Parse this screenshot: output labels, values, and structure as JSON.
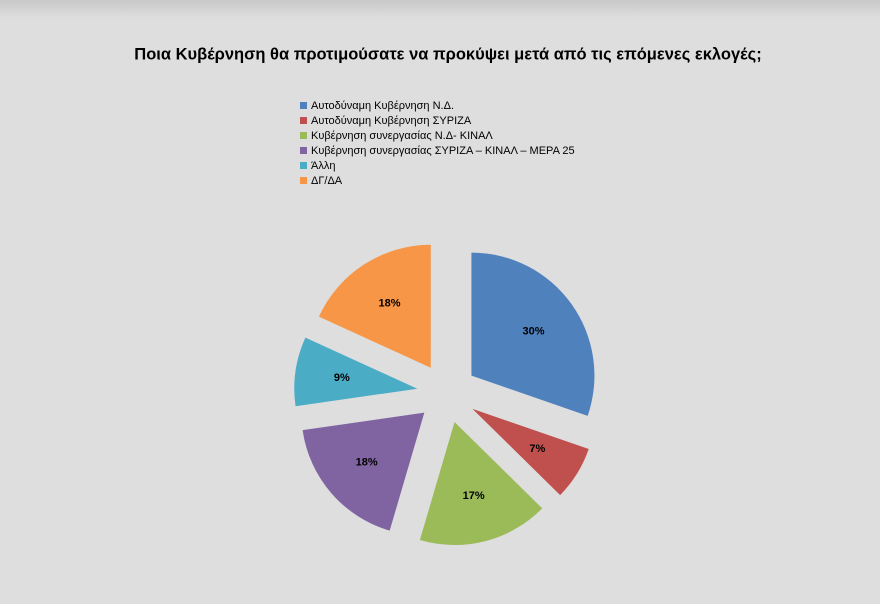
{
  "chart_data": {
    "type": "pie",
    "title": "Ποια Κυβέρνηση θα προτιμούσατε να προκύψει μετά από τις επόμενες εκλογές;",
    "categories": [
      "Αυτοδύναμη Κυβέρνηση Ν.Δ.",
      "Αυτοδύναμη Κυβέρνηση ΣΥΡΙΖΑ",
      "Κυβέρνηση συνεργασίας Ν.Δ- ΚΙΝΑΛ",
      "Κυβέρνηση συνεργασίας ΣΥΡΙΖΑ – ΚΙΝΑΛ – ΜΕΡΑ 25",
      "Άλλη",
      "ΔΓ/ΔΑ"
    ],
    "values": [
      30,
      7,
      17,
      18,
      9,
      18
    ],
    "value_labels": [
      "30%",
      "7%",
      "17%",
      "18%",
      "9%",
      "18%"
    ],
    "colors": [
      "#4f81bd",
      "#c0504d",
      "#9bbb59",
      "#8064a2",
      "#4bacc6",
      "#f79646"
    ],
    "legend": "top"
  }
}
